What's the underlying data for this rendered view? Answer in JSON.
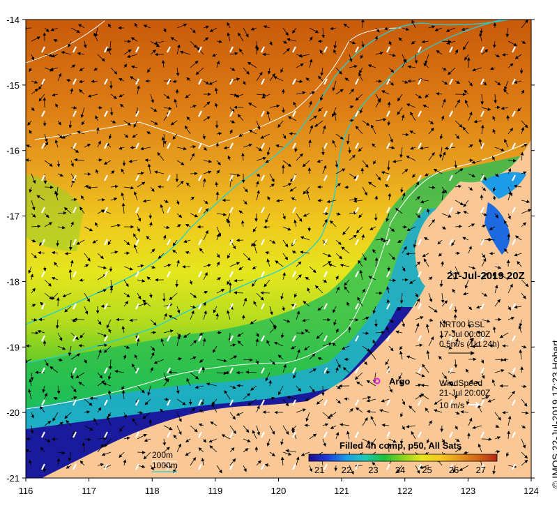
{
  "map": {
    "xaxis": {
      "ticks": [
        "116",
        "117",
        "118",
        "119",
        "120",
        "121",
        "122",
        "123",
        "124"
      ]
    },
    "yaxis": {
      "ticks": [
        "-14",
        "-15",
        "-16",
        "-17",
        "-18",
        "-19",
        "-20",
        "-21"
      ]
    },
    "datetime_label": "21-Jul-2019 20Z",
    "current_legend": {
      "line1": "NRT00 GSL",
      "line2": "17-Jul 00:00Z",
      "line3": "0.5m/s (1kt 24h)"
    },
    "wind_legend": {
      "line1": "WindSpeed",
      "line2": "21-Jul 20:00Z",
      "line3": "10 m/s"
    },
    "argo_label": "Argo",
    "contour_legend": {
      "c200": "200m",
      "c1000": "1000m"
    },
    "colorbar": {
      "title": "Filled 4h comp, p50, All Sats",
      "ticks": [
        "21",
        "22",
        "23",
        "24",
        "25",
        "26",
        "27"
      ],
      "colors": [
        "#1a0a8c",
        "#1e3cd6",
        "#1e9be6",
        "#1ec8b4",
        "#1ebe3c",
        "#8cd21e",
        "#e6e61e",
        "#f5c81e",
        "#e6961e",
        "#d26414",
        "#b42814"
      ]
    },
    "credit": "© IMOS 22-Jul-2019 17:23 Hobart",
    "colors": {
      "land": "#f9c896",
      "isobath_200": "#ffffff",
      "isobath_1000": "#20d0d0",
      "argo": "#e020e0"
    }
  }
}
